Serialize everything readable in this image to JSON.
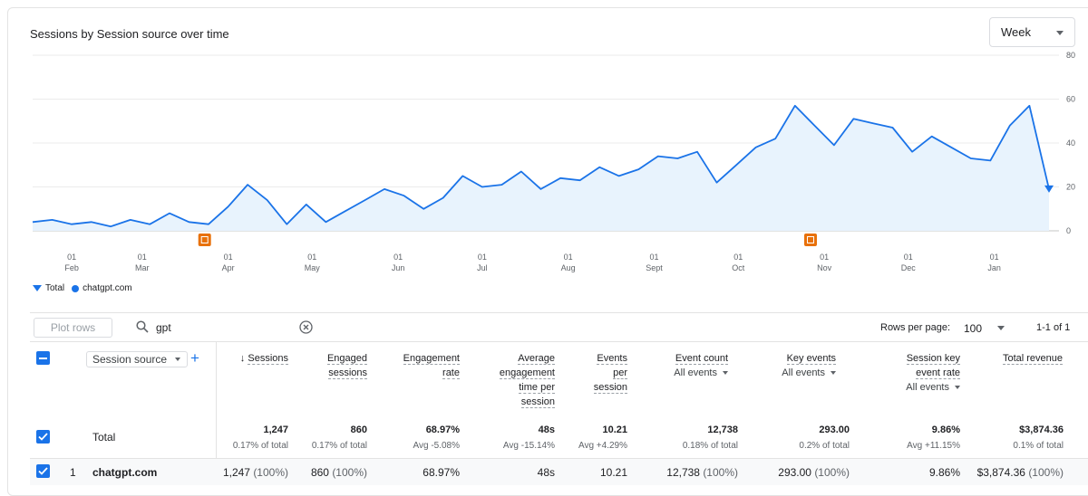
{
  "chart": {
    "title": "Sessions by Session source over time",
    "period": "Week",
    "legend": [
      {
        "label": "Total",
        "marker": "pin",
        "color": "#1a73e8"
      },
      {
        "label": "chatgpt.com",
        "marker": "dot",
        "color": "#1a73e8"
      }
    ]
  },
  "chart_data": {
    "type": "area",
    "title": "Sessions by Session source over time",
    "ylim": [
      0,
      80
    ],
    "yticks": [
      0,
      20,
      40,
      60,
      80
    ],
    "yaxis_side": "right",
    "grid": true,
    "month_ticks": [
      {
        "day": "01",
        "month": "Feb",
        "index": 2
      },
      {
        "day": "01",
        "month": "Mar",
        "index": 5.6
      },
      {
        "day": "01",
        "month": "Apr",
        "index": 10
      },
      {
        "day": "01",
        "month": "May",
        "index": 14.3
      },
      {
        "day": "01",
        "month": "Jun",
        "index": 18.7
      },
      {
        "day": "01",
        "month": "Jul",
        "index": 23
      },
      {
        "day": "01",
        "month": "Aug",
        "index": 27.4
      },
      {
        "day": "01",
        "month": "Sept",
        "index": 31.8
      },
      {
        "day": "01",
        "month": "Oct",
        "index": 36.1
      },
      {
        "day": "01",
        "month": "Nov",
        "index": 40.5
      },
      {
        "day": "01",
        "month": "Dec",
        "index": 44.8
      },
      {
        "day": "01",
        "month": "Jan",
        "index": 49.2
      }
    ],
    "series": [
      {
        "name": "chatgpt.com",
        "color": "#1a73e8",
        "values": [
          4,
          5,
          3,
          4,
          2,
          5,
          3,
          8,
          4,
          3,
          11,
          21,
          14,
          3,
          12,
          4,
          9,
          14,
          19,
          16,
          10,
          15,
          25,
          20,
          21,
          27,
          19,
          24,
          23,
          29,
          25,
          28,
          34,
          33,
          36,
          22,
          30,
          38,
          42,
          57,
          48,
          39,
          51,
          49,
          47,
          36,
          43,
          38,
          33,
          32,
          48,
          57,
          19
        ]
      }
    ],
    "annotations": [
      {
        "index": 8.8,
        "icon": "annotation-icon"
      },
      {
        "index": 39.8,
        "icon": "annotation-icon"
      }
    ]
  },
  "toolbar": {
    "plot_rows_label": "Plot rows",
    "search_value": "gpt",
    "rows_per_page_label": "Rows per page:",
    "rows_per_page_value": "100",
    "pagination": "1-1 of 1"
  },
  "table": {
    "dimension_label": "Session source",
    "headers": {
      "sessions": "Sessions",
      "engaged_sessions_1": "Engaged",
      "engaged_sessions_2": "sessions",
      "engagement_rate_1": "Engagement",
      "engagement_rate_2": "rate",
      "avg_time_1": "Average",
      "avg_time_2": "engagement",
      "avg_time_3": "time per",
      "avg_time_4": "session",
      "events_per_1": "Events",
      "events_per_2": "per",
      "events_per_3": "session",
      "event_count": "Event count",
      "event_count_sub": "All events",
      "key_events": "Key events",
      "key_events_sub": "All events",
      "skey_1": "Session key",
      "skey_2": "event rate",
      "skey_sub": "All events",
      "revenue": "Total revenue"
    },
    "total": {
      "label": "Total",
      "sessions": "1,247",
      "sessions_sub": "0.17% of total",
      "engaged": "860",
      "engaged_sub": "0.17% of total",
      "rate": "68.97%",
      "rate_sub": "Avg -5.08%",
      "time": "48s",
      "time_sub": "Avg -15.14%",
      "events_per": "10.21",
      "events_per_sub": "Avg +4.29%",
      "event_count": "12,738",
      "event_count_sub": "0.18% of total",
      "key_events": "293.00",
      "key_events_sub": "0.2% of total",
      "skey": "9.86%",
      "skey_sub": "Avg +11.15%",
      "revenue": "$3,874.36",
      "revenue_sub": "0.1% of total"
    },
    "rows": [
      {
        "index": "1",
        "source": "chatgpt.com",
        "sessions": "1,247",
        "sessions_pct": "(100%)",
        "engaged": "860",
        "engaged_pct": "(100%)",
        "rate": "68.97%",
        "time": "48s",
        "events_per": "10.21",
        "event_count": "12,738",
        "event_count_pct": "(100%)",
        "key_events": "293.00",
        "key_events_pct": "(100%)",
        "skey": "9.86%",
        "revenue": "$3,874.36",
        "revenue_pct": "(100%)"
      }
    ]
  },
  "colors": {
    "accent": "#1a73e8",
    "area_fill": "#e8f3fd",
    "annotation": "#e8710a"
  }
}
